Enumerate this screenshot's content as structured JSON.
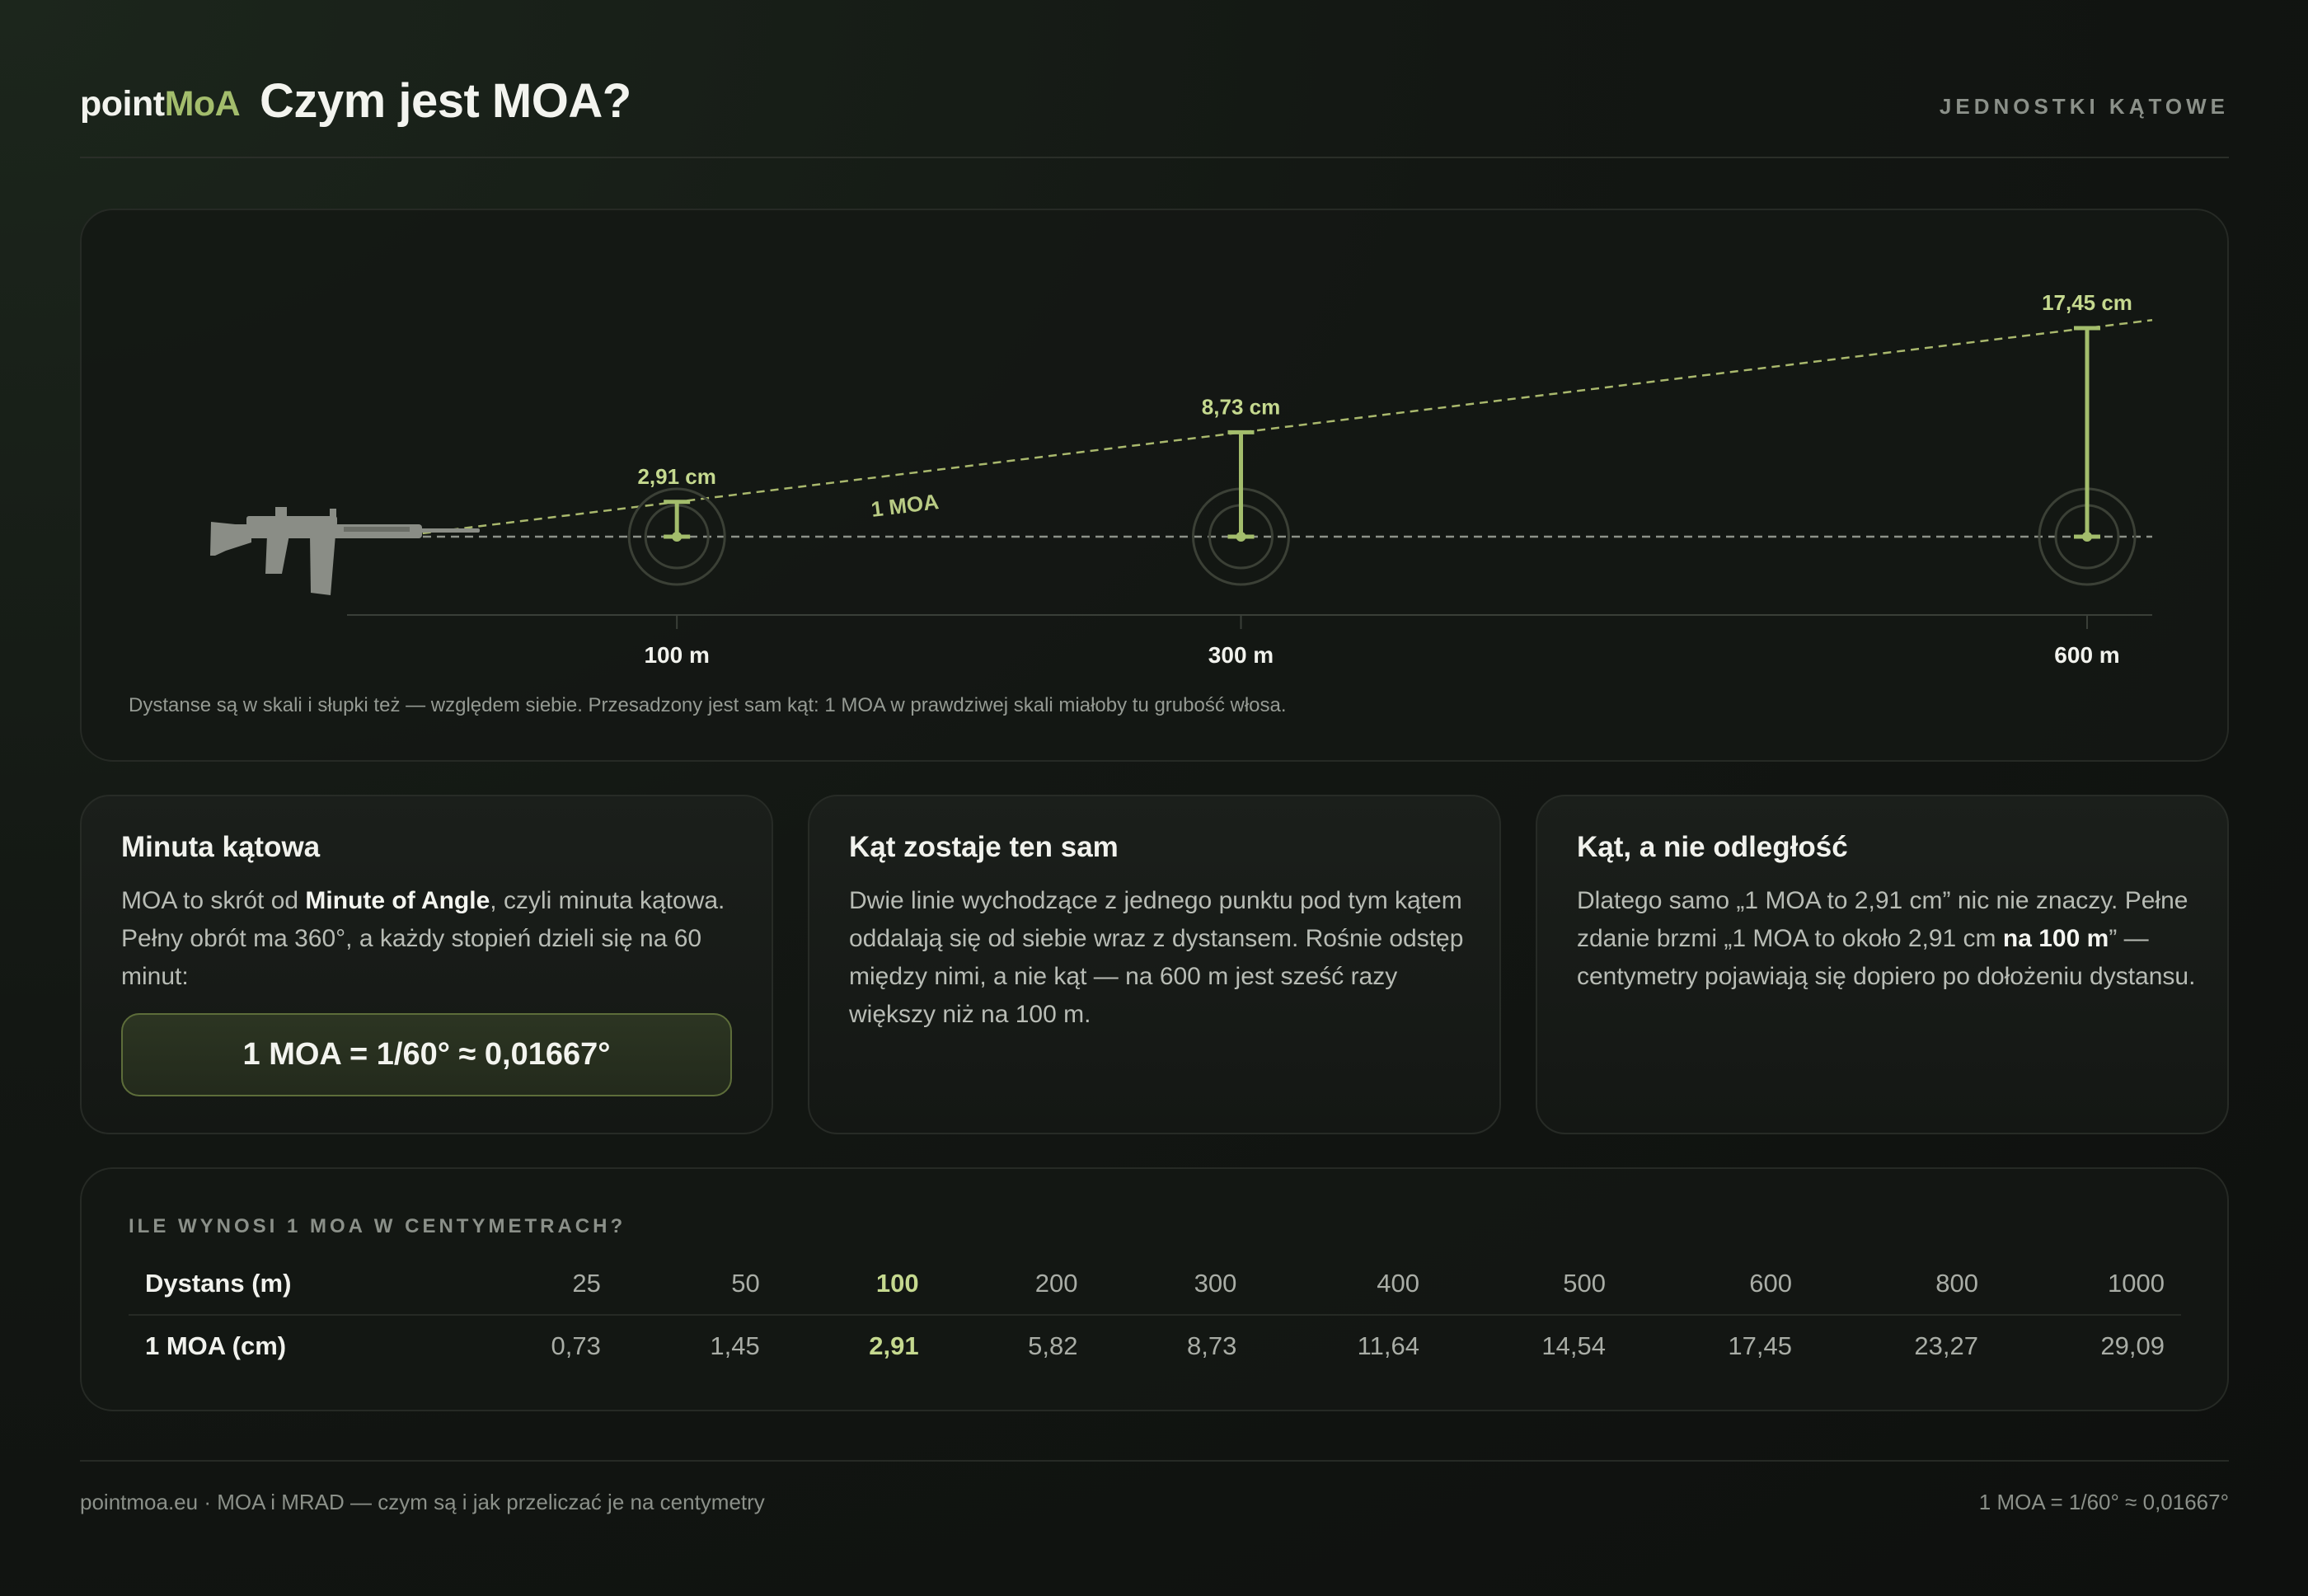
{
  "header": {
    "logo_main": "point",
    "logo_accent": "MoA",
    "title": "Czym jest MOA?",
    "tag": "JEDNOSTKI KĄTOWE"
  },
  "diagram": {
    "angle_label": "1 MOA",
    "note": "Dystanse są w skali i słupki też — względem siebie. Przesadzony jest sam kąt: 1 MOA w prawdziwej skali miałoby tu grubość włosa.",
    "accent_color": "#a3bd6c",
    "icons": [
      "rifle-icon",
      "target-icon"
    ]
  },
  "chart_data": {
    "type": "diagram",
    "markers": [
      {
        "distance_m": 100,
        "distance_label": "100 m",
        "height_cm": 2.91,
        "height_label": "2,91 cm"
      },
      {
        "distance_m": 300,
        "distance_label": "300 m",
        "height_cm": 8.73,
        "height_label": "8,73 cm"
      },
      {
        "distance_m": 600,
        "distance_label": "600 m",
        "height_cm": 17.45,
        "height_label": "17,45 cm"
      }
    ]
  },
  "cards": [
    {
      "title": "Minuta kątowa",
      "text_before": "MOA to skrót od ",
      "text_bold": "Minute of Angle",
      "text_after": ", czyli minuta kątowa. Pełny obrót ma 360°, a każdy stopień dzieli się na 60 minut:",
      "formula": "1 MOA = 1/60° ≈ 0,01667°"
    },
    {
      "title": "Kąt zostaje ten sam",
      "text": "Dwie linie wychodzące z jednego punktu pod tym kątem oddalają się od siebie wraz z dystansem. Rośnie odstęp między nimi, a nie kąt — na 600 m jest sześć razy większy niż na 100 m."
    },
    {
      "title": "Kąt, a nie odległość",
      "text_before": "Dlatego samo „1 MOA to 2,91 cm” nic nie znaczy. Pełne zdanie brzmi „1 MOA to około 2,91 cm ",
      "text_bold": "na 100 m",
      "text_after": "” — centymetry pojawiają się dopiero po dołożeniu dystansu."
    }
  ],
  "table": {
    "heading": "ILE WYNOSI 1 MOA W CENTYMETRACH?",
    "row1_label": "Dystans (m)",
    "row2_label": "1 MOA (cm)",
    "distances": [
      "25",
      "50",
      "100",
      "200",
      "300",
      "400",
      "500",
      "600",
      "800",
      "1000"
    ],
    "values": [
      "0,73",
      "1,45",
      "2,91",
      "5,82",
      "8,73",
      "11,64",
      "14,54",
      "17,45",
      "23,27",
      "29,09"
    ],
    "highlight_index": 2,
    "highlight_color": "#c5d98f"
  },
  "footer": {
    "left": "pointmoa.eu · MOA i MRAD — czym są i jak przeliczać je na centymetry",
    "right": "1 MOA = 1/60° ≈ 0,01667°"
  }
}
